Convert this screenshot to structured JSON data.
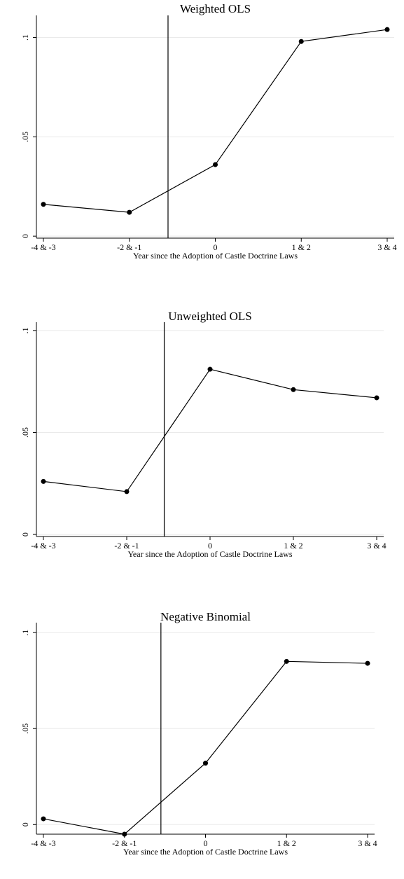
{
  "chart_data": [
    {
      "type": "line",
      "title": "Weighted OLS",
      "xlabel": "Year since the Adoption of Castle Doctrine Laws",
      "categories": [
        "-4 & -3",
        "-2 & -1",
        "0",
        "1 & 2",
        "3 & 4"
      ],
      "values": [
        0.016,
        0.012,
        0.036,
        0.098,
        0.104
      ],
      "yticks": [
        "0",
        ".05",
        ".1"
      ],
      "ytick_values": [
        0,
        0.05,
        0.1
      ],
      "ylim": [
        -0.001,
        0.109
      ],
      "reference_line_x": 1.45,
      "grid": true
    },
    {
      "type": "line",
      "title": "Unweighted OLS",
      "xlabel": "Year since the Adoption of Castle Doctrine Laws",
      "categories": [
        "-4 & -3",
        "-2 & -1",
        "0",
        "1 & 2",
        "3 & 4"
      ],
      "values": [
        0.026,
        0.021,
        0.081,
        0.071,
        0.067
      ],
      "yticks": [
        "0",
        ".05",
        ".1"
      ],
      "ytick_values": [
        0,
        0.05,
        0.1
      ],
      "ylim": [
        -0.001,
        0.102
      ],
      "reference_line_x": 1.45,
      "grid": true
    },
    {
      "type": "line",
      "title": "Negative Binomial",
      "xlabel": "Year since the Adoption of Castle Doctrine Laws",
      "categories": [
        "-4 & -3",
        "-2 & -1",
        "0",
        "1 & 2",
        "3 & 4"
      ],
      "values": [
        0.003,
        -0.005,
        0.032,
        0.085,
        0.084
      ],
      "yticks": [
        "0",
        ".05",
        ".1"
      ],
      "ytick_values": [
        0,
        0.05,
        0.1
      ],
      "ylim": [
        -0.005,
        0.103
      ],
      "reference_line_x": 1.45,
      "grid": true
    }
  ]
}
